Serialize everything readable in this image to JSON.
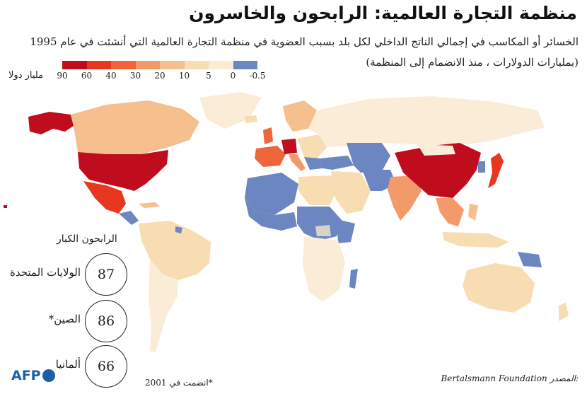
{
  "title": "منظمة التجارة العالمية: الرابحون والخاسرون",
  "subtitle_line1": "الخسائر أو المكاسب في إجمالي الناتج الداخلي لكل بلد بسبب العضوية في منظمة التجارة العالمية التي أنشئت في عام 1995",
  "subtitle_line2": "(بمليارات الدولارات ، منذ الانضمام إلى المنظمة)",
  "legend": {
    "unit": "مليار دولا",
    "ticks": [
      "90",
      "60",
      "40",
      "30",
      "20",
      "10",
      "5",
      "0",
      "-0.5"
    ],
    "colors": [
      "#bf0d1e",
      "#e8361f",
      "#f0643a",
      "#f39a6a",
      "#f5bf8e",
      "#f8dcb2",
      "#faecd6",
      "#6b86c0"
    ]
  },
  "top_winners": {
    "title": "الرابحون الكبار",
    "items": [
      {
        "value": "87",
        "name": "الولايات المتحدة"
      },
      {
        "value": "86",
        "name": "الصين*"
      },
      {
        "value": "66",
        "name": "ألمانيا"
      }
    ]
  },
  "footnote": "*انضمت في 2001",
  "source_label": "المصدر:",
  "source_name": "Bertalsmann Foundation",
  "logo_text": "AFP",
  "map_colors": {
    "ocean": "#ffffff",
    "nodata": "#d8d2c8",
    "dark_red": "#bf0d1e",
    "red": "#e8361f",
    "orange": "#f0643a",
    "light_orange": "#f39a6a",
    "peach": "#f5bf8e",
    "light_peach": "#f8dcb2",
    "cream": "#faecd6",
    "blue": "#6b86c0"
  }
}
